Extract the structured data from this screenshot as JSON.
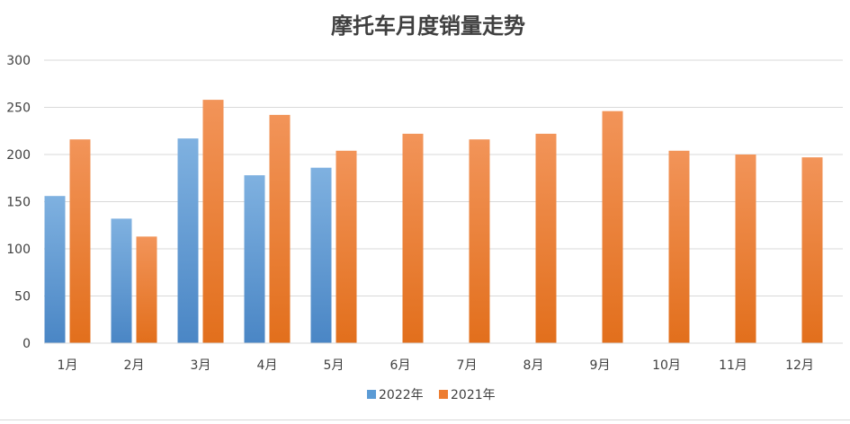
{
  "chart_data": {
    "type": "bar",
    "title": "摩托车月度销量走势",
    "categories": [
      "1月",
      "2月",
      "3月",
      "4月",
      "5月",
      "6月",
      "7月",
      "8月",
      "9月",
      "10月",
      "11月",
      "12月"
    ],
    "series": [
      {
        "name": "2022年",
        "values": [
          156,
          132,
          217,
          178,
          186,
          null,
          null,
          null,
          null,
          null,
          null,
          null
        ]
      },
      {
        "name": "2021年",
        "values": [
          216,
          113,
          258,
          242,
          204,
          222,
          216,
          222,
          246,
          204,
          200,
          197
        ]
      }
    ],
    "ylim": [
      0,
      300
    ],
    "yticks": [
      0,
      50,
      100,
      150,
      200,
      250,
      300
    ],
    "grid": true,
    "legend": "bottom-center"
  },
  "colors": {
    "series_2022": "#5b9bd5",
    "series_2021": "#ed7d31",
    "grid": "#d9d9d9",
    "text": "#404040",
    "title": "#404040"
  }
}
